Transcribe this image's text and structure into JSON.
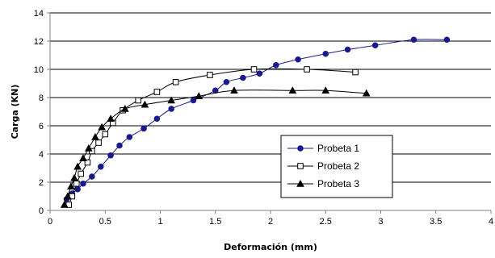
{
  "chart_data": {
    "type": "line",
    "xlabel": "Deformación (mm)",
    "ylabel": "Carga (KN)",
    "xlim": [
      0,
      4
    ],
    "ylim": [
      0,
      14
    ],
    "xticks": [
      "0",
      "0.5",
      "1",
      "1.5",
      "2",
      "2.5",
      "3",
      "3.5",
      "4"
    ],
    "yticks": [
      "0",
      "2",
      "4",
      "6",
      "8",
      "10",
      "12",
      "14"
    ],
    "grid": "horizontal",
    "legend": "inside-right",
    "series": [
      {
        "name": "Probeta 1",
        "marker": "circle",
        "color": "#1a1a8c",
        "x": [
          0.15,
          0.2,
          0.25,
          0.3,
          0.38,
          0.46,
          0.55,
          0.63,
          0.72,
          0.85,
          0.97,
          1.1,
          1.3,
          1.5,
          1.6,
          1.75,
          1.9,
          2.05,
          2.25,
          2.5,
          2.7,
          2.95,
          3.3,
          3.6
        ],
        "y": [
          0.8,
          1.2,
          1.5,
          1.9,
          2.4,
          3.1,
          3.9,
          4.6,
          5.2,
          5.8,
          6.5,
          7.2,
          7.8,
          8.5,
          9.1,
          9.4,
          9.7,
          10.3,
          10.7,
          11.1,
          11.4,
          11.7,
          12.1,
          12.1
        ]
      },
      {
        "name": "Probeta 2",
        "marker": "square",
        "color": "#000000",
        "x": [
          0.17,
          0.2,
          0.24,
          0.28,
          0.34,
          0.38,
          0.44,
          0.5,
          0.57,
          0.66,
          0.8,
          0.97,
          1.14,
          1.45,
          1.85,
          2.33,
          2.77
        ],
        "y": [
          0.4,
          1.0,
          1.9,
          2.6,
          3.4,
          4.2,
          4.8,
          5.4,
          6.2,
          7.1,
          7.8,
          8.4,
          9.1,
          9.6,
          10.0,
          10.0,
          9.8
        ]
      },
      {
        "name": "Probeta 3",
        "marker": "triangle",
        "color": "#000000",
        "x": [
          0.13,
          0.16,
          0.19,
          0.22,
          0.25,
          0.3,
          0.35,
          0.41,
          0.47,
          0.55,
          0.68,
          0.86,
          1.1,
          1.35,
          1.67,
          2.2,
          2.5,
          2.87
        ],
        "y": [
          0.4,
          1.0,
          1.7,
          2.3,
          3.1,
          3.7,
          4.4,
          5.2,
          5.9,
          6.5,
          7.2,
          7.5,
          7.8,
          8.1,
          8.5,
          8.5,
          8.5,
          8.3
        ]
      }
    ]
  },
  "colors": {
    "background": "#ffffff",
    "grid": "#000000",
    "axis": "#808080"
  }
}
